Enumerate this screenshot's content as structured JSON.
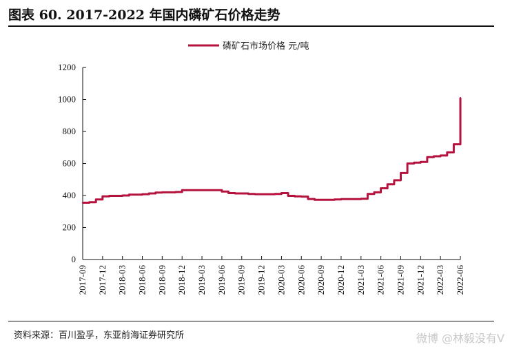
{
  "figure": {
    "title": "图表 60. 2017-2022 年国内磷矿石价格走势",
    "source": "资料来源：百川盈孚，东亚前海证券研究所",
    "watermark": "微博 @林毅没有V"
  },
  "chart_data": {
    "type": "line",
    "title": "图表 60. 2017-2022 年国内磷矿石价格走势",
    "xlabel": "",
    "ylabel": "",
    "ylim": [
      0,
      1200
    ],
    "yticks": [
      0,
      200,
      400,
      600,
      800,
      1000,
      1200
    ],
    "xlim": [
      "2017-09",
      "2022-06"
    ],
    "xticks": [
      "2017-09",
      "2017-12",
      "2018-03",
      "2018-06",
      "2018-09",
      "2018-12",
      "2019-03",
      "2019-06",
      "2019-09",
      "2019-12",
      "2020-03",
      "2020-06",
      "2020-09",
      "2020-12",
      "2021-03",
      "2021-06",
      "2021-09",
      "2021-12",
      "2022-03",
      "2022-06"
    ],
    "grid": false,
    "legend": {
      "position": "top-center"
    },
    "colors": {
      "series": "#b5123e",
      "axis": "#111111"
    },
    "series": [
      {
        "name": "磷矿石市场价格  元/吨",
        "x": [
          "2017-09",
          "2017-10",
          "2017-11",
          "2017-12",
          "2018-01",
          "2018-02",
          "2018-03",
          "2018-04",
          "2018-05",
          "2018-06",
          "2018-07",
          "2018-08",
          "2018-09",
          "2018-10",
          "2018-11",
          "2018-12",
          "2019-01",
          "2019-02",
          "2019-03",
          "2019-04",
          "2019-05",
          "2019-06",
          "2019-07",
          "2019-08",
          "2019-09",
          "2019-10",
          "2019-11",
          "2019-12",
          "2020-01",
          "2020-02",
          "2020-03",
          "2020-04",
          "2020-05",
          "2020-06",
          "2020-07",
          "2020-08",
          "2020-09",
          "2020-10",
          "2020-11",
          "2020-12",
          "2021-01",
          "2021-02",
          "2021-03",
          "2021-04",
          "2021-05",
          "2021-06",
          "2021-07",
          "2021-08",
          "2021-09",
          "2021-10",
          "2021-11",
          "2021-12",
          "2022-01",
          "2022-02",
          "2022-03",
          "2022-04",
          "2022-05",
          "2022-06"
        ],
        "values": [
          355,
          358,
          375,
          395,
          398,
          398,
          400,
          405,
          405,
          408,
          413,
          418,
          420,
          420,
          422,
          433,
          433,
          433,
          433,
          433,
          433,
          425,
          415,
          413,
          413,
          410,
          408,
          408,
          408,
          410,
          415,
          398,
          395,
          393,
          378,
          373,
          373,
          373,
          375,
          377,
          377,
          377,
          380,
          410,
          420,
          445,
          470,
          495,
          540,
          600,
          605,
          610,
          640,
          645,
          650,
          670,
          720,
          1010
        ]
      }
    ]
  }
}
